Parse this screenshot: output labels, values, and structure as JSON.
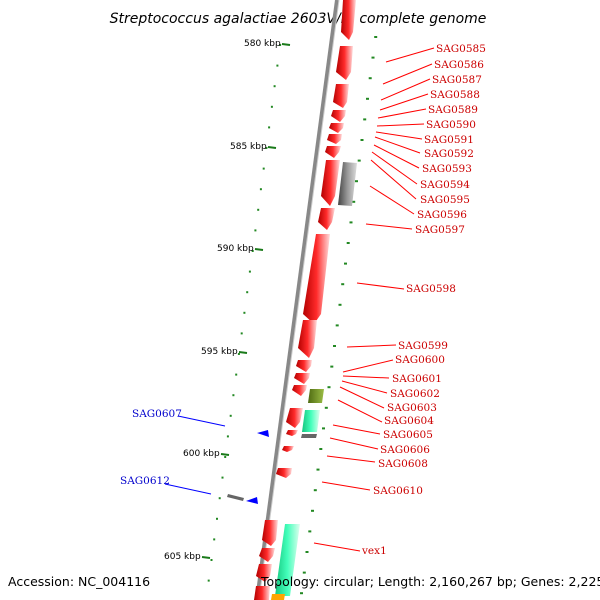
{
  "title": "Streptococcus agalactiae 2603V/R, complete genome",
  "accession": "Accession: NC_004116",
  "topology": "Topology: circular; Length: 2,160,267 bp; Genes: 2,225",
  "colors": {
    "forward_gene": "#ff0000",
    "reverse_gene": "#0000ff",
    "backbone": "#888888",
    "tick_major": "#1a7a1a",
    "tick_minor": "#228822",
    "feature_gray": "#666666",
    "feature_olive": "#6b8e23",
    "feature_teal": "#33ffaa"
  },
  "scale": {
    "labels": [
      "580 kbp",
      "585 kbp",
      "590 kbp",
      "595 kbp",
      "600 kbp",
      "605 kbp"
    ]
  },
  "gene_labels": {
    "right": [
      "SAG0585",
      "SAG0586",
      "SAG0587",
      "SAG0588",
      "SAG0589",
      "SAG0590",
      "SAG0591",
      "SAG0592",
      "SAG0593",
      "SAG0594",
      "SAG0595",
      "SAG0596",
      "SAG0597",
      "SAG0598",
      "SAG0599",
      "SAG0600",
      "SAG0601",
      "SAG0602",
      "SAG0603",
      "SAG0604",
      "SAG0605",
      "SAG0606",
      "SAG0608",
      "SAG0610",
      "vex1"
    ],
    "left": [
      "SAG0607",
      "SAG0612"
    ]
  }
}
